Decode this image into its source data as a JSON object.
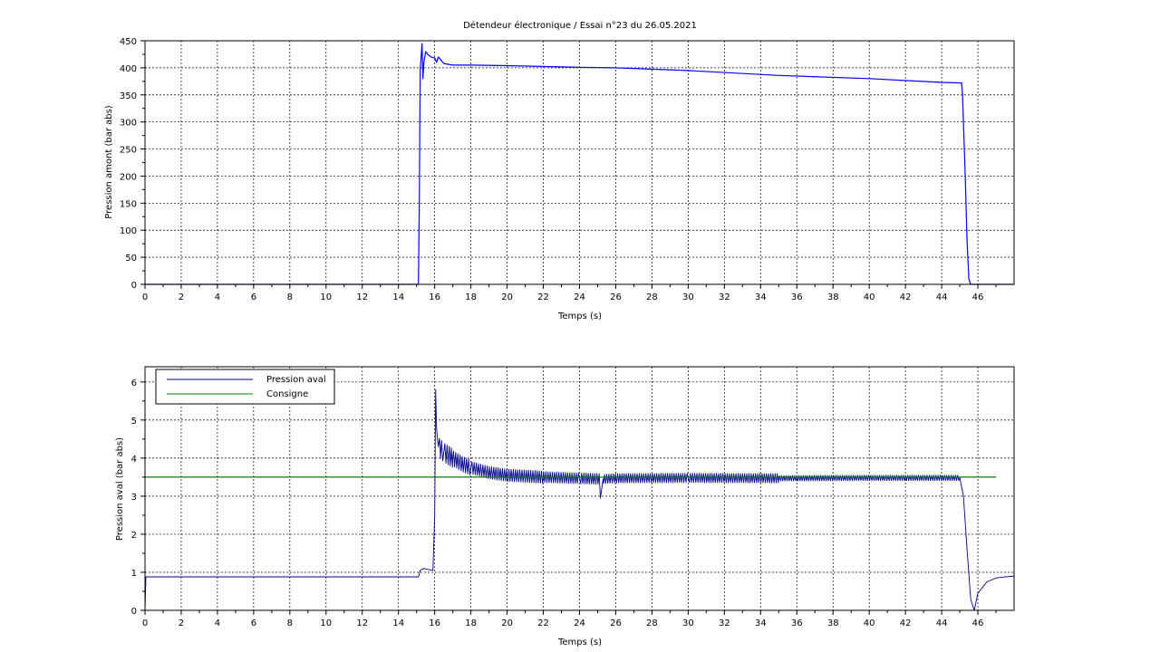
{
  "figure": {
    "title": "Détendeur électronique / Essai n°23 du 26.05.2021"
  },
  "chart_data": [
    {
      "type": "line",
      "xlabel": "Temps (s)",
      "ylabel": "Pression amont (bar abs)",
      "xlim": [
        0,
        48
      ],
      "ylim": [
        0,
        450
      ],
      "xticks": [
        0,
        2,
        4,
        6,
        8,
        10,
        12,
        14,
        16,
        18,
        20,
        22,
        24,
        26,
        28,
        30,
        32,
        34,
        36,
        38,
        40,
        42,
        44,
        46
      ],
      "yticks": [
        0,
        50,
        100,
        150,
        200,
        250,
        300,
        350,
        400,
        450
      ],
      "grid": true,
      "series": [
        {
          "color": "#0000ff",
          "x": [
            0,
            15.1,
            15.15,
            15.2,
            15.25,
            15.3,
            15.35,
            15.4,
            15.5,
            15.6,
            15.8,
            16.0,
            16.1,
            16.2,
            16.5,
            17.0,
            18.0,
            20.0,
            24.0,
            26.0,
            30.0,
            35.0,
            40.0,
            44.0,
            45.1,
            45.15,
            45.2,
            45.3,
            45.4,
            45.5,
            45.6,
            48.0
          ],
          "y": [
            0,
            0,
            150,
            395,
            420,
            445,
            380,
            410,
            430,
            425,
            420,
            418,
            410,
            420,
            408,
            405,
            405,
            404,
            401,
            400,
            395,
            386,
            380,
            373,
            372,
            350,
            300,
            200,
            80,
            10,
            0,
            0
          ]
        }
      ]
    },
    {
      "type": "line",
      "xlabel": "Temps (s)",
      "ylabel": "Pression aval (bar abs)",
      "xlim": [
        0,
        48
      ],
      "ylim": [
        0,
        6.4
      ],
      "xticks": [
        0,
        2,
        4,
        6,
        8,
        10,
        12,
        14,
        16,
        18,
        20,
        22,
        24,
        26,
        28,
        30,
        32,
        34,
        36,
        38,
        40,
        42,
        44,
        46
      ],
      "yticks": [
        0,
        1,
        2,
        3,
        4,
        5,
        6
      ],
      "grid": true,
      "legend": "top-left",
      "series": [
        {
          "name": "Pression aval",
          "color": "#00008b",
          "x": [
            0,
            0.05,
            0.1,
            15.1,
            15.2,
            15.4,
            15.6,
            15.9,
            16.0,
            16.05,
            16.1,
            16.15,
            16.2,
            16.3,
            16.5,
            17.0,
            17.5,
            18.0,
            19.0,
            20.0,
            22.0,
            24.0,
            25.1,
            25.15,
            25.3,
            26.0,
            30.0,
            35.0,
            40.0,
            45.0,
            45.2,
            45.4,
            45.6,
            45.8,
            46.0,
            46.5,
            47.0,
            47.5,
            48.0
          ],
          "y": [
            0,
            0.88,
            0.88,
            0.88,
            1.05,
            1.1,
            1.08,
            1.05,
            2.5,
            5.8,
            4.8,
            4.5,
            4.3,
            4.25,
            4.15,
            4.0,
            3.85,
            3.75,
            3.62,
            3.55,
            3.5,
            3.47,
            3.45,
            2.95,
            3.45,
            3.47,
            3.48,
            3.47,
            3.48,
            3.48,
            3.0,
            1.6,
            0.3,
            0.0,
            0.45,
            0.75,
            0.85,
            0.88,
            0.9
          ],
          "ripple": [
            {
              "from": 16.2,
              "to": 17.0,
              "amp": 0.25
            },
            {
              "from": 17.0,
              "to": 18.0,
              "amp": 0.2
            },
            {
              "from": 18.0,
              "to": 22.0,
              "amp": 0.16
            },
            {
              "from": 22.0,
              "to": 25.1,
              "amp": 0.14
            },
            {
              "from": 25.3,
              "to": 35.0,
              "amp": 0.12
            },
            {
              "from": 35.0,
              "to": 45.0,
              "amp": 0.07
            }
          ]
        },
        {
          "name": "Consigne",
          "color": "#008000",
          "x": [
            0,
            47
          ],
          "y": [
            3.5,
            3.5
          ]
        }
      ]
    }
  ]
}
